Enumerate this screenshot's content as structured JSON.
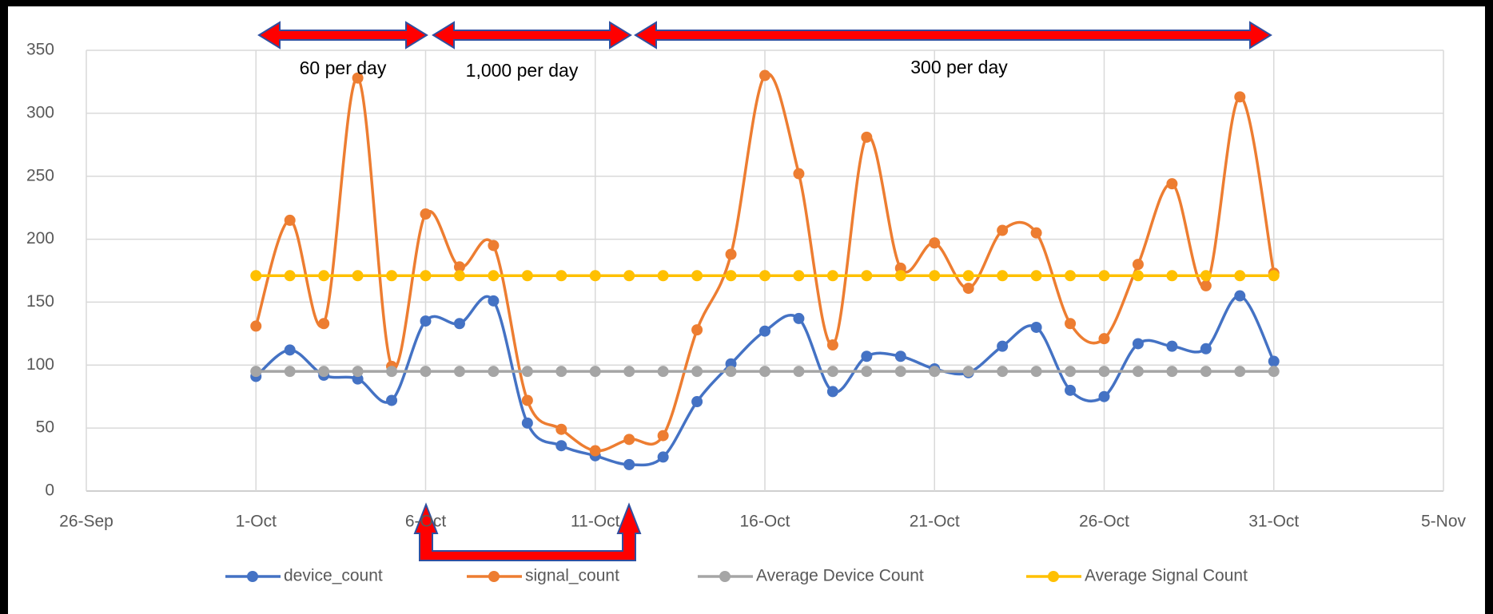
{
  "chart_data": {
    "type": "line",
    "x": [
      1,
      2,
      3,
      4,
      5,
      6,
      7,
      8,
      9,
      10,
      11,
      12,
      13,
      14,
      15,
      16,
      17,
      18,
      19,
      20,
      21,
      22,
      23,
      24,
      25,
      26,
      27,
      28,
      29,
      30,
      31
    ],
    "series": [
      {
        "name": "device_count",
        "color": "#4472c4",
        "values": [
          91,
          112,
          92,
          89,
          72,
          135,
          133,
          151,
          54,
          36,
          28,
          21,
          27,
          71,
          101,
          127,
          137,
          79,
          107,
          107,
          97,
          94,
          115,
          130,
          80,
          75,
          117,
          115,
          113,
          155,
          103
        ]
      },
      {
        "name": "signal_count",
        "color": "#ed7d31",
        "values": [
          131,
          215,
          133,
          328,
          99,
          220,
          178,
          195,
          72,
          49,
          32,
          41,
          44,
          128,
          188,
          330,
          252,
          116,
          281,
          177,
          197,
          161,
          207,
          205,
          133,
          121,
          180,
          244,
          163,
          313,
          173
        ]
      },
      {
        "name": "Average Device Count",
        "color": "#a5a5a5",
        "values": [
          95,
          95,
          95,
          95,
          95,
          95,
          95,
          95,
          95,
          95,
          95,
          95,
          95,
          95,
          95,
          95,
          95,
          95,
          95,
          95,
          95,
          95,
          95,
          95,
          95,
          95,
          95,
          95,
          95,
          95,
          95
        ]
      },
      {
        "name": "Average Signal Count",
        "color": "#ffc000",
        "values": [
          171,
          171,
          171,
          171,
          171,
          171,
          171,
          171,
          171,
          171,
          171,
          171,
          171,
          171,
          171,
          171,
          171,
          171,
          171,
          171,
          171,
          171,
          171,
          171,
          171,
          171,
          171,
          171,
          171,
          171,
          171
        ]
      }
    ],
    "xlim": [
      -4,
      36
    ],
    "xticks": [
      {
        "value": -4,
        "label": "26-Sep"
      },
      {
        "value": 1,
        "label": "1-Oct"
      },
      {
        "value": 6,
        "label": "6-Oct"
      },
      {
        "value": 11,
        "label": "11-Oct"
      },
      {
        "value": 16,
        "label": "16-Oct"
      },
      {
        "value": 21,
        "label": "21-Oct"
      },
      {
        "value": 26,
        "label": "26-Oct"
      },
      {
        "value": 31,
        "label": "31-Oct"
      },
      {
        "value": 36,
        "label": "5-Nov"
      }
    ],
    "ylim": [
      0,
      350
    ],
    "yticks": [
      0,
      50,
      100,
      150,
      200,
      250,
      300,
      350
    ],
    "grid": true,
    "annotations": [
      "60 per day",
      "1,000 per day",
      "300 per day"
    ]
  }
}
